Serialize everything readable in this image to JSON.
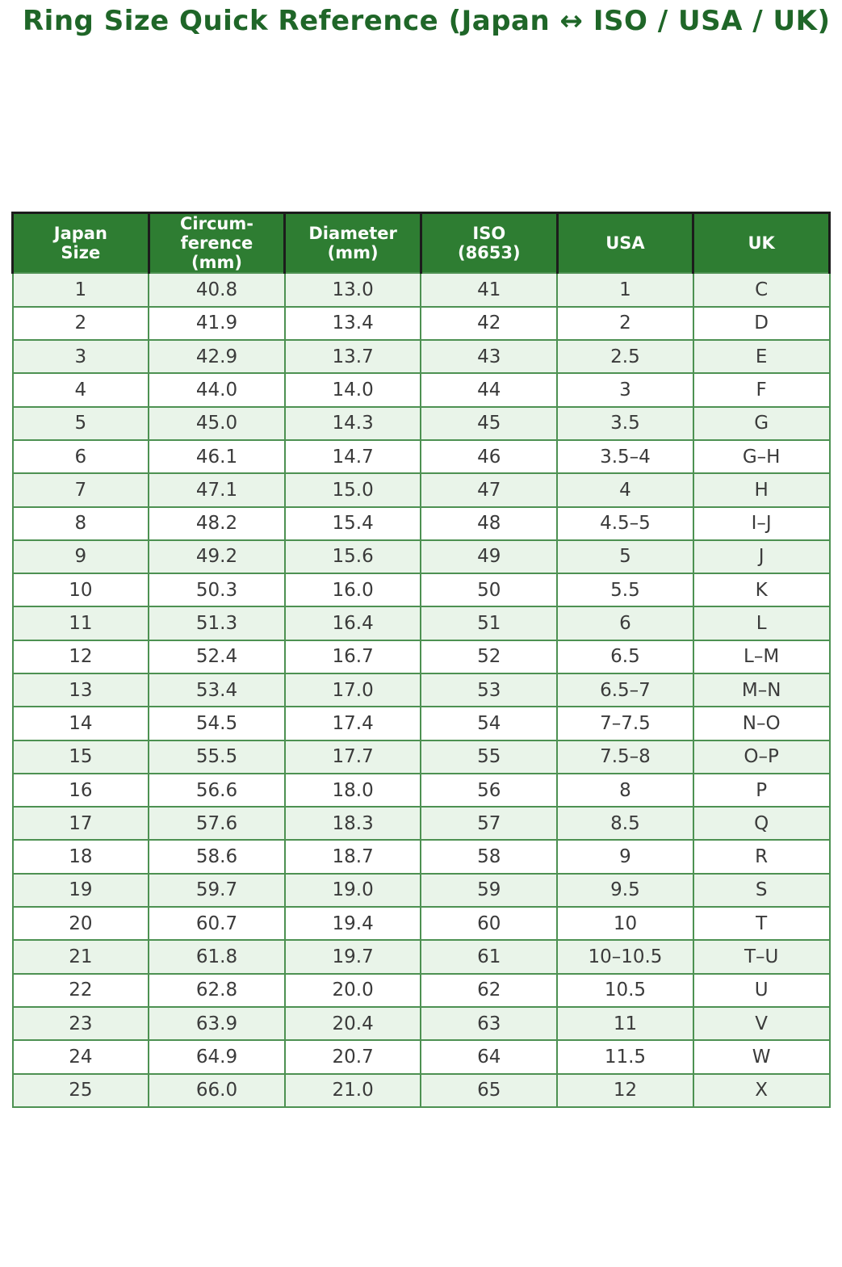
{
  "title": "Ring Size Quick Reference (Japan ↔ ISO / USA / UK)",
  "colors": {
    "title_green": "#1f6628",
    "header_bg": "#2e7d32",
    "header_text": "#fbfdfb",
    "row_alt_bg": "#e9f4e9",
    "row_bg": "#ffffff",
    "cell_border": "#4d9152",
    "header_border": "#1c1c1c",
    "body_text": "#3b3b3b"
  },
  "chart_data": {
    "type": "table",
    "title": "Ring Size Quick Reference (Japan ↔ ISO / USA / UK)",
    "columns": [
      "Japan\nSize",
      "Circum-\nference\n(mm)",
      "Diameter\n(mm)",
      "ISO\n(8653)",
      "USA",
      "UK"
    ],
    "rows": [
      [
        "1",
        "40.8",
        "13.0",
        "41",
        "1",
        "C"
      ],
      [
        "2",
        "41.9",
        "13.4",
        "42",
        "2",
        "D"
      ],
      [
        "3",
        "42.9",
        "13.7",
        "43",
        "2.5",
        "E"
      ],
      [
        "4",
        "44.0",
        "14.0",
        "44",
        "3",
        "F"
      ],
      [
        "5",
        "45.0",
        "14.3",
        "45",
        "3.5",
        "G"
      ],
      [
        "6",
        "46.1",
        "14.7",
        "46",
        "3.5–4",
        "G–H"
      ],
      [
        "7",
        "47.1",
        "15.0",
        "47",
        "4",
        "H"
      ],
      [
        "8",
        "48.2",
        "15.4",
        "48",
        "4.5–5",
        "I–J"
      ],
      [
        "9",
        "49.2",
        "15.6",
        "49",
        "5",
        "J"
      ],
      [
        "10",
        "50.3",
        "16.0",
        "50",
        "5.5",
        "K"
      ],
      [
        "11",
        "51.3",
        "16.4",
        "51",
        "6",
        "L"
      ],
      [
        "12",
        "52.4",
        "16.7",
        "52",
        "6.5",
        "L–M"
      ],
      [
        "13",
        "53.4",
        "17.0",
        "53",
        "6.5–7",
        "M–N"
      ],
      [
        "14",
        "54.5",
        "17.4",
        "54",
        "7–7.5",
        "N–O"
      ],
      [
        "15",
        "55.5",
        "17.7",
        "55",
        "7.5–8",
        "O–P"
      ],
      [
        "16",
        "56.6",
        "18.0",
        "56",
        "8",
        "P"
      ],
      [
        "17",
        "57.6",
        "18.3",
        "57",
        "8.5",
        "Q"
      ],
      [
        "18",
        "58.6",
        "18.7",
        "58",
        "9",
        "R"
      ],
      [
        "19",
        "59.7",
        "19.0",
        "59",
        "9.5",
        "S"
      ],
      [
        "20",
        "60.7",
        "19.4",
        "60",
        "10",
        "T"
      ],
      [
        "21",
        "61.8",
        "19.7",
        "61",
        "10–10.5",
        "T–U"
      ],
      [
        "22",
        "62.8",
        "20.0",
        "62",
        "10.5",
        "U"
      ],
      [
        "23",
        "63.9",
        "20.4",
        "63",
        "11",
        "V"
      ],
      [
        "24",
        "64.9",
        "20.7",
        "64",
        "11.5",
        "W"
      ],
      [
        "25",
        "66.0",
        "21.0",
        "65",
        "12",
        "X"
      ]
    ]
  }
}
